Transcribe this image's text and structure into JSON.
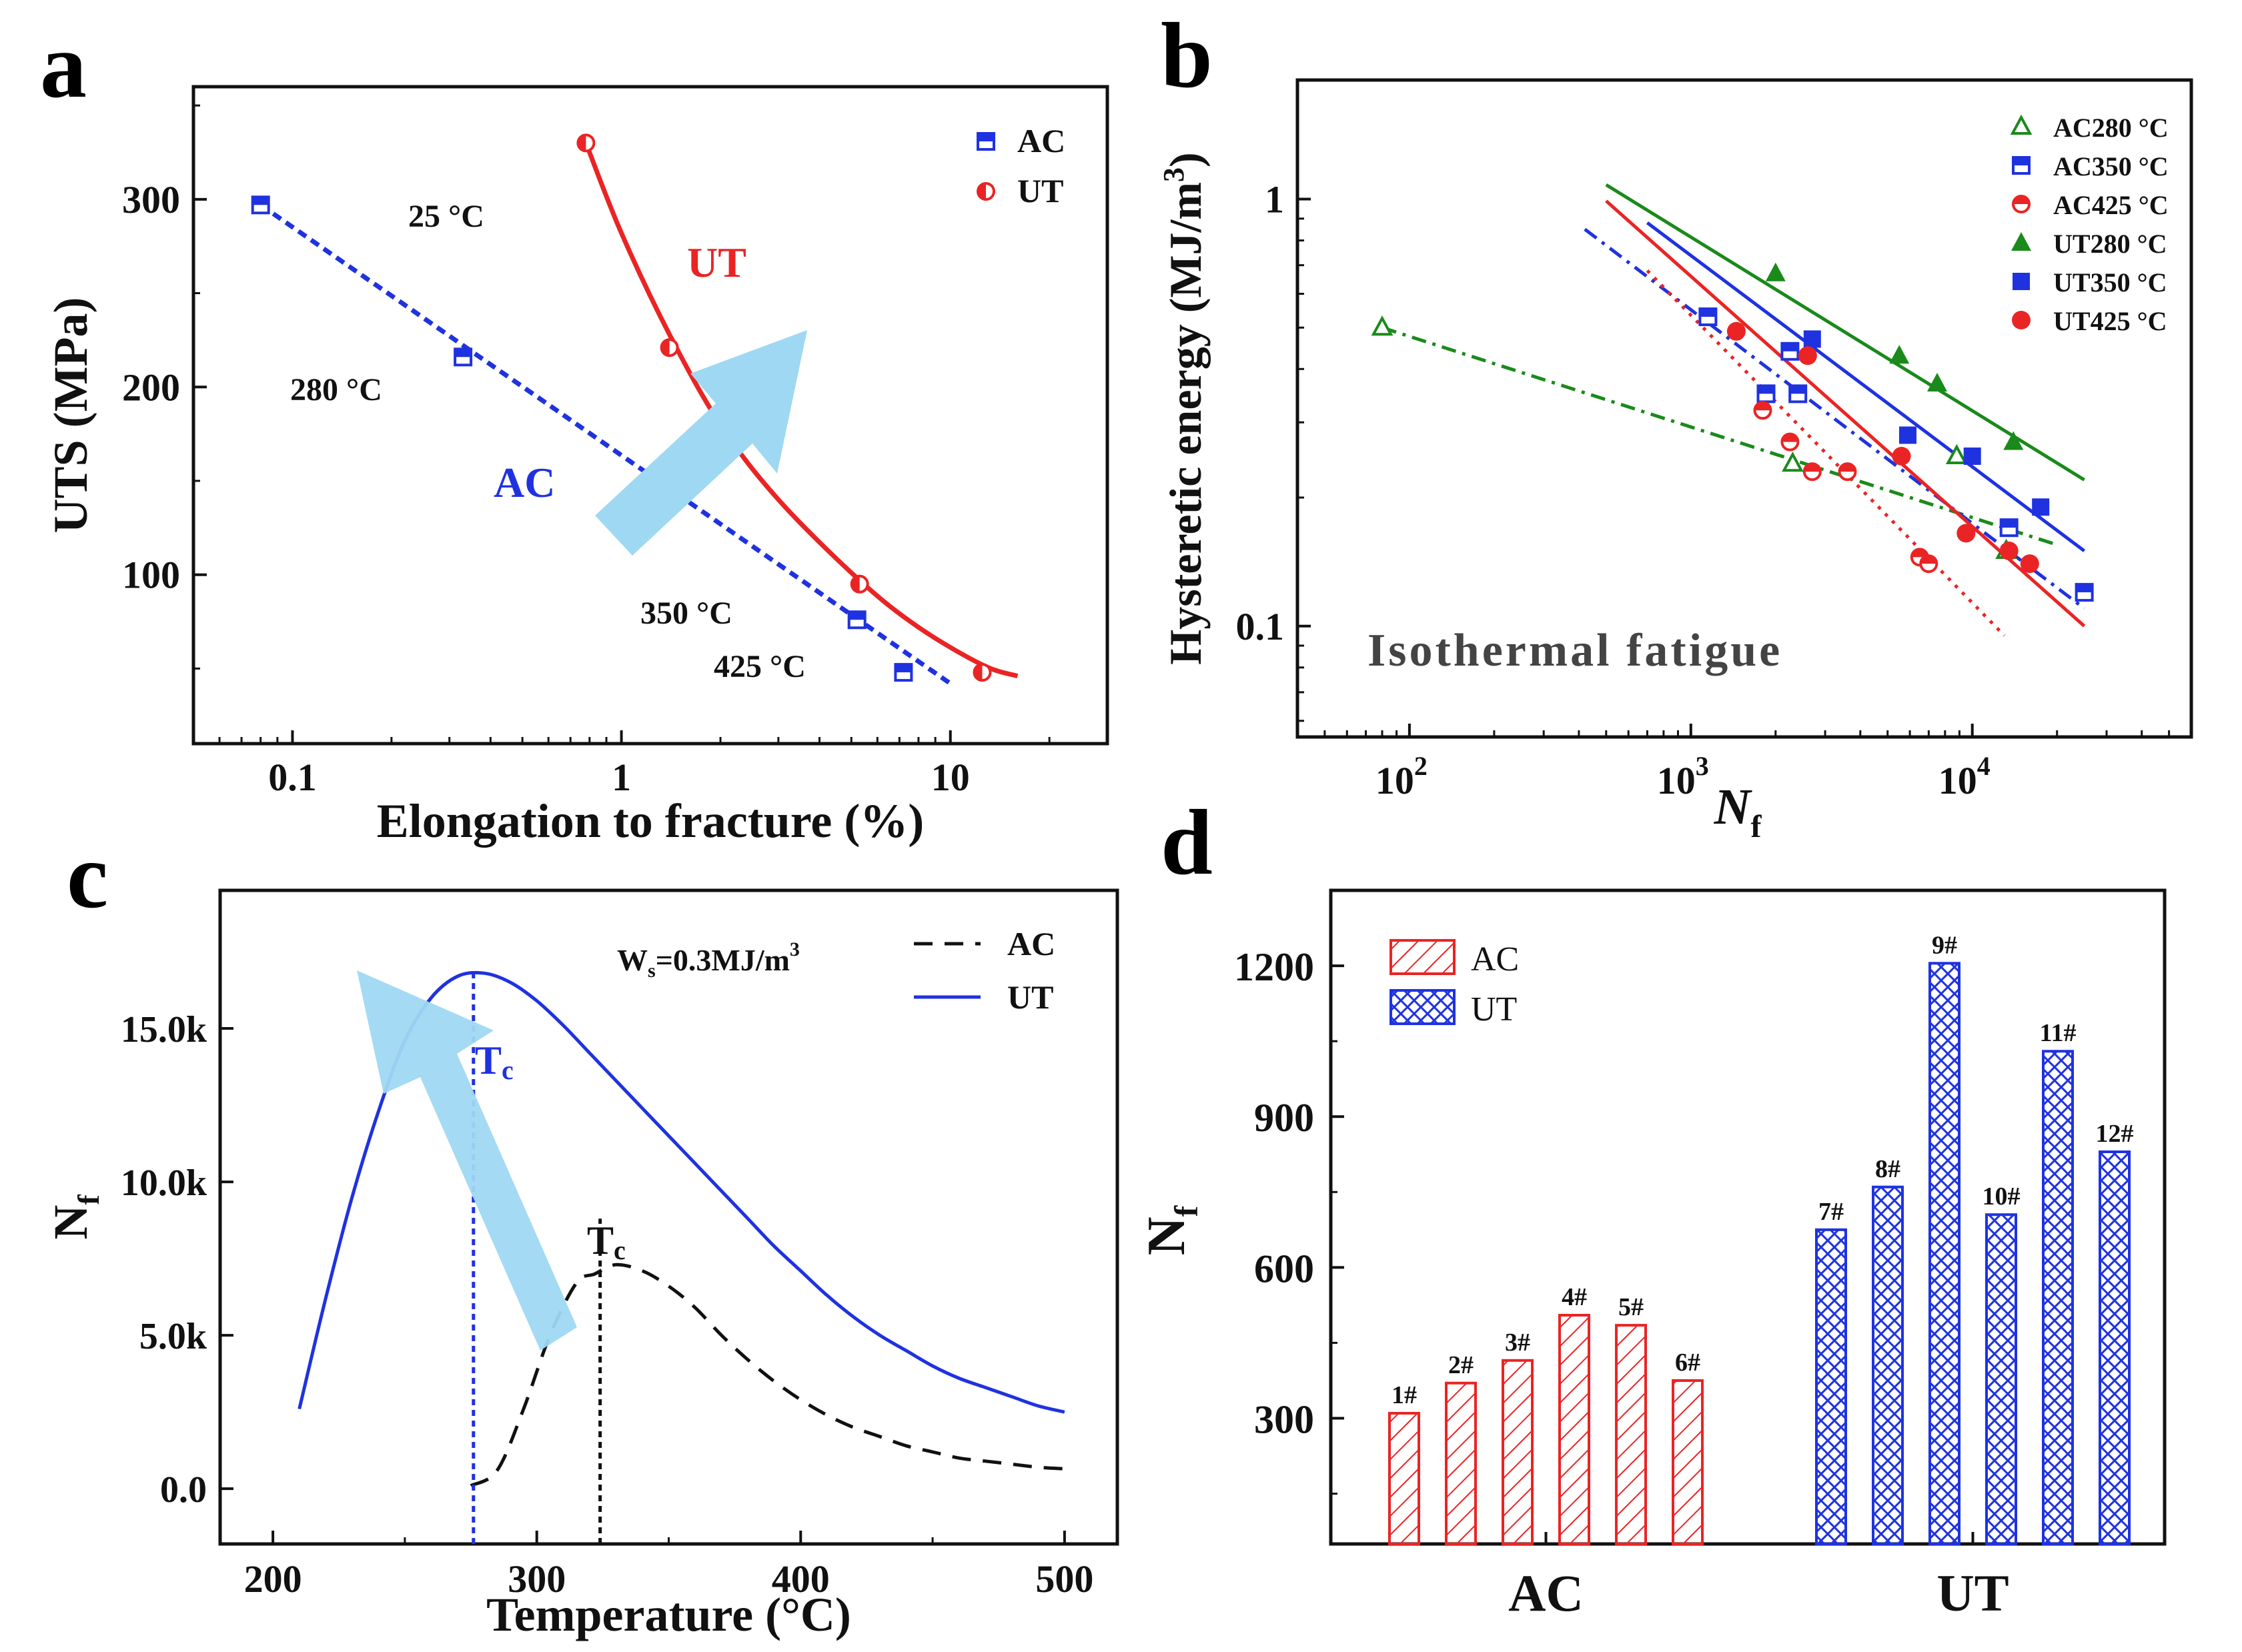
{
  "panels": {
    "a": {
      "letter": "a"
    },
    "b": {
      "letter": "b"
    },
    "c": {
      "letter": "c"
    },
    "d": {
      "letter": "d"
    }
  },
  "colors": {
    "ac": "#1f32e0",
    "ut": "#ea2424",
    "green": "#1a8a1a",
    "arrow": "#9fd8f2",
    "black": "#111111"
  },
  "chart_data": [
    {
      "id": "a",
      "type": "scatter",
      "title": "",
      "xlabel": "Elongation to fracture (%)",
      "ylabel": "UTS (MPa)",
      "xscale": "log",
      "xlim": [
        0.05,
        30
      ],
      "ylim": [
        10,
        360
      ],
      "x_ticks": [
        0.1,
        1,
        10
      ],
      "x_tick_labels": [
        "0.1",
        "1",
        "10"
      ],
      "y_ticks": [
        100,
        200,
        300
      ],
      "y_tick_labels": [
        "100",
        "200",
        "300"
      ],
      "legend": [
        "AC",
        "UT"
      ],
      "legend_position": "top-right",
      "series": [
        {
          "name": "AC",
          "x": [
            0.08,
            0.33,
            5.2,
            7.2
          ],
          "y": [
            297,
            216,
            76,
            48
          ]
        },
        {
          "name": "UT",
          "x": [
            0.78,
            1.4,
            5.3,
            12.5
          ],
          "y": [
            330,
            221,
            95,
            48
          ]
        }
      ],
      "fits": [
        {
          "name": "AC fit",
          "style": "dashed",
          "x": [
            0.08,
            10
          ],
          "y": [
            297,
            42
          ]
        },
        {
          "name": "UT fit",
          "style": "solid",
          "x": [
            0.78,
            1.0,
            1.4,
            2.0,
            3.0,
            5.3,
            8.0,
            12.5,
            16
          ],
          "y": [
            330,
            282,
            228,
            180,
            140,
            97,
            72,
            52,
            46
          ]
        }
      ],
      "annotations": {
        "t25": "25 °C",
        "t280": "280 °C",
        "t350": "350 °C",
        "t425": "425 °C",
        "ut_label": "UT",
        "ac_label": "AC"
      }
    },
    {
      "id": "b",
      "type": "scatter",
      "xlabel": "N",
      "xlabel_sub": "f",
      "ylabel": "Hysteretic energy (MJ/m",
      "ylabel_sup": "3",
      "ylabel_end": ")",
      "xscale": "log",
      "yscale": "log",
      "xlim": [
        40,
        60000
      ],
      "ylim": [
        0.055,
        1.9
      ],
      "x_ticks": [
        100,
        1000,
        10000
      ],
      "x_tick_labels": [
        "10",
        "10",
        "10"
      ],
      "x_tick_exponents": [
        "2",
        "3",
        "4"
      ],
      "y_ticks": [
        0.1,
        1
      ],
      "y_tick_labels": [
        "0.1",
        "1"
      ],
      "legend_position": "top-right",
      "annotation": "Isothermal fatigue",
      "series": [
        {
          "name": "AC280 °C",
          "marker": "triangle-open",
          "x": [
            80,
            2300,
            8800,
            13200
          ],
          "y": [
            0.5,
            0.24,
            0.25,
            0.15
          ]
        },
        {
          "name": "AC350 °C",
          "marker": "square-half",
          "x": [
            1150,
            1850,
            2250,
            2400,
            13500,
            25000
          ],
          "y": [
            0.53,
            0.35,
            0.44,
            0.35,
            0.17,
            0.12
          ]
        },
        {
          "name": "AC425 °C",
          "marker": "circle-half",
          "x": [
            1800,
            2250,
            2700,
            3600,
            6500,
            7000
          ],
          "y": [
            0.32,
            0.27,
            0.23,
            0.23,
            0.145,
            0.14
          ]
        },
        {
          "name": "UT280 °C",
          "marker": "triangle-filled",
          "x": [
            2000,
            5500,
            7500,
            14000
          ],
          "y": [
            0.67,
            0.43,
            0.37,
            0.27
          ]
        },
        {
          "name": "UT350 °C",
          "marker": "square-filled",
          "x": [
            2700,
            5900,
            10000,
            17500
          ],
          "y": [
            0.47,
            0.28,
            0.25,
            0.19
          ]
        },
        {
          "name": "UT425 °C",
          "marker": "circle-filled",
          "x": [
            1450,
            2600,
            5600,
            9500,
            13500,
            16000
          ],
          "y": [
            0.49,
            0.43,
            0.25,
            0.165,
            0.15,
            0.14
          ]
        }
      ],
      "fits": [
        {
          "name": "AC280 fit",
          "color_key": "green",
          "style": "dashdot",
          "x": [
            80,
            20000
          ],
          "y": [
            0.5,
            0.155
          ]
        },
        {
          "name": "AC350 fit",
          "color_key": "ac",
          "style": "dashdot",
          "x": [
            420,
            25000
          ],
          "y": [
            0.85,
            0.11
          ]
        },
        {
          "name": "AC425 fit",
          "color_key": "ut",
          "style": "dotted",
          "x": [
            700,
            13000
          ],
          "y": [
            0.68,
            0.095
          ]
        },
        {
          "name": "UT280 fit",
          "color_key": "green",
          "style": "solid",
          "x": [
            500,
            25000
          ],
          "y": [
            1.08,
            0.22
          ]
        },
        {
          "name": "UT350 fit",
          "color_key": "ac",
          "style": "solid",
          "x": [
            700,
            25000
          ],
          "y": [
            0.88,
            0.15
          ]
        },
        {
          "name": "UT425 fit",
          "color_key": "ut",
          "style": "solid",
          "x": [
            500,
            25000
          ],
          "y": [
            0.99,
            0.1
          ]
        }
      ]
    },
    {
      "id": "c",
      "type": "line",
      "xlabel": "Temperature (°C)",
      "ylabel": "N",
      "ylabel_sub": "f",
      "xlim": [
        180,
        520
      ],
      "ylim": [
        -1800,
        19500
      ],
      "x_ticks": [
        200,
        300,
        400,
        500
      ],
      "x_tick_labels": [
        "200",
        "300",
        "400",
        "500"
      ],
      "y_ticks": [
        0,
        5000,
        10000,
        15000
      ],
      "y_tick_labels": [
        "0.0",
        "5.0k",
        "10.0k",
        "15.0k"
      ],
      "legend": [
        "AC",
        "UT"
      ],
      "legend_position": "top-right",
      "annotations": {
        "ws_main": "W",
        "ws_sub": "s",
        "ws_rest": "=0.3MJ/m",
        "ws_sup": "3",
        "tc_main": "T",
        "tc_sub": "c"
      },
      "series": [
        {
          "name": "UT",
          "style": "solid",
          "x": [
            210,
            220,
            230,
            240,
            250,
            260,
            270,
            280,
            290,
            300,
            310,
            320,
            330,
            340,
            350,
            360,
            370,
            380,
            390,
            400,
            410,
            420,
            430,
            440,
            450,
            460,
            470,
            480,
            490,
            500
          ],
          "y": [
            2600,
            6200,
            9500,
            12300,
            14600,
            16000,
            16700,
            16800,
            16500,
            15900,
            15100,
            14200,
            13300,
            12400,
            11500,
            10600,
            9700,
            8800,
            7900,
            7100,
            6300,
            5600,
            5000,
            4500,
            4000,
            3600,
            3300,
            3000,
            2700,
            2500
          ]
        },
        {
          "name": "AC",
          "style": "dashed",
          "x": [
            275,
            285,
            295,
            305,
            315,
            322,
            330,
            340,
            350,
            360,
            370,
            380,
            390,
            400,
            410,
            420,
            430,
            440,
            450,
            460,
            470,
            480,
            490,
            500
          ],
          "y": [
            100,
            600,
            2600,
            5000,
            6700,
            7000,
            7300,
            7100,
            6600,
            5900,
            5000,
            4200,
            3500,
            2900,
            2400,
            2000,
            1700,
            1400,
            1200,
            1000,
            900,
            800,
            700,
            650
          ]
        }
      ],
      "vlines": [
        {
          "x": 276,
          "color_key": "ac",
          "ymax": 16900
        },
        {
          "x": 324,
          "color_key": "black",
          "ymax": 8800
        }
      ]
    },
    {
      "id": "d",
      "type": "bar",
      "xlabel": "",
      "ylabel": "N",
      "ylabel_sub": "f",
      "ylim": [
        50,
        1350
      ],
      "y_ticks": [
        300,
        600,
        900,
        1200
      ],
      "y_tick_labels": [
        "300",
        "600",
        "900",
        "1200"
      ],
      "groups": [
        "AC",
        "UT"
      ],
      "legend": [
        "AC",
        "UT"
      ],
      "legend_position": "top-left",
      "series": [
        {
          "name": "AC",
          "categories": [
            "1#",
            "2#",
            "3#",
            "4#",
            "5#",
            "6#"
          ],
          "values": [
            310,
            370,
            415,
            505,
            485,
            375
          ]
        },
        {
          "name": "UT",
          "categories": [
            "7#",
            "8#",
            "9#",
            "10#",
            "11#",
            "12#"
          ],
          "values": [
            675,
            760,
            1205,
            705,
            1030,
            830
          ]
        }
      ]
    }
  ]
}
